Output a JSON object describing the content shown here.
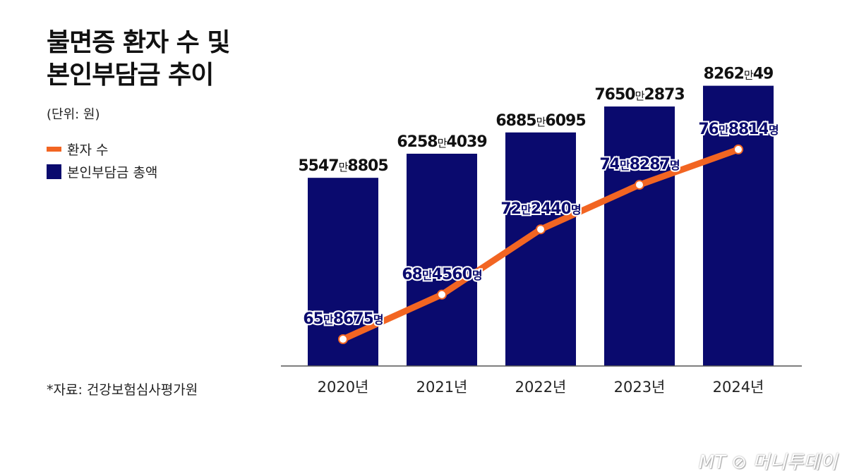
{
  "chart_data": {
    "type": "bar+line",
    "title": "불면증 환자 수 및 본인부담금 추이",
    "unit": "(단위: 원)",
    "categories": [
      "2020년",
      "2021년",
      "2022년",
      "2023년",
      "2024년"
    ],
    "series": [
      {
        "name": "본인부담금 총액",
        "type": "bar",
        "color": "#0a0a6e",
        "values": [
          55478805,
          62584039,
          68856095,
          76502873,
          82620049
        ],
        "labels": [
          [
            "5547",
            "만",
            "8805"
          ],
          [
            "6258",
            "만",
            "4039"
          ],
          [
            "6885",
            "만",
            "6095"
          ],
          [
            "7650",
            "만",
            "2873"
          ],
          [
            "8262",
            "만",
            "49"
          ]
        ]
      },
      {
        "name": "환자 수",
        "type": "line",
        "color": "#f26522",
        "values": [
          658675,
          684560,
          722440,
          748287,
          768814
        ],
        "labels": [
          [
            "65",
            "만",
            "8675",
            "명"
          ],
          [
            "68",
            "만",
            "4560",
            "명"
          ],
          [
            "72",
            "만",
            "2440",
            "명"
          ],
          [
            "74",
            "만",
            "8287",
            "명"
          ],
          [
            "76",
            "만",
            "8814",
            "명"
          ]
        ]
      }
    ],
    "legend": "left"
  },
  "title_line1": "불면증 환자 수 및",
  "title_line2": "본인부담금 추이",
  "source": "*자료: 건강보험심사평가원",
  "logo": "MT 머니투데이"
}
